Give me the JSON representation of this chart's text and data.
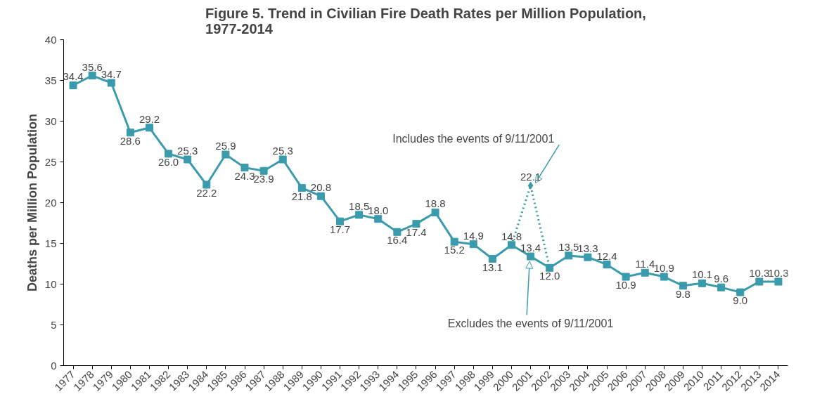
{
  "chart_data": {
    "type": "line",
    "title": "Figure 5. Trend in Civilian Fire Death Rates per Million Population,\n1977-2014",
    "ylabel": "Deaths per Million Population",
    "categories": [
      "1977",
      "1978",
      "1979",
      "1980",
      "1981",
      "1982",
      "1983",
      "1984",
      "1985",
      "1986",
      "1987",
      "1988",
      "1989",
      "1990",
      "1991",
      "1992",
      "1993",
      "1994",
      "1995",
      "1996",
      "1997",
      "1998",
      "1999",
      "2000",
      "2001",
      "2002",
      "2003",
      "2004",
      "2005",
      "2006",
      "2007",
      "2008",
      "2009",
      "2010",
      "2011",
      "2012",
      "2013",
      "2014"
    ],
    "series": [
      {
        "color": "#3a9bac",
        "marker": "square",
        "line_style": "solid",
        "values": [
          34.4,
          35.6,
          34.7,
          28.6,
          29.2,
          26.0,
          25.3,
          22.2,
          25.9,
          24.3,
          23.9,
          25.3,
          21.8,
          20.8,
          17.7,
          18.5,
          18.0,
          16.4,
          17.4,
          18.8,
          15.2,
          14.9,
          13.1,
          14.8,
          13.4,
          12.0,
          13.5,
          13.3,
          12.4,
          10.9,
          11.4,
          10.9,
          9.8,
          10.1,
          9.6,
          9.0,
          10.3,
          10.3
        ],
        "value_labels": [
          "34.4",
          "35.6",
          "34.7",
          "28.6",
          "29.2",
          "26.0",
          "25.3",
          "22.2",
          "25.9",
          "24.3",
          "23.9",
          "25.3",
          "21.8",
          "20.8",
          "17.7",
          "18.5",
          "18.0",
          "16.4",
          "17.4",
          "18.8",
          "15.2",
          "14.9",
          "13.1",
          "14.8",
          "13.4",
          "12.0",
          "13.5",
          "13.3",
          "12.4",
          "10.9",
          "11.4",
          "10.9",
          "9.8",
          "10.1",
          "9.6",
          "9.0",
          "10.3",
          "10.3"
        ]
      },
      {
        "color": "#3a9bac",
        "marker": "diamond",
        "line_style": "dotted",
        "values": [
          null,
          null,
          null,
          null,
          null,
          null,
          null,
          null,
          null,
          null,
          null,
          null,
          null,
          null,
          null,
          null,
          null,
          null,
          null,
          null,
          null,
          null,
          null,
          14.8,
          22.1,
          12.0,
          null,
          null,
          null,
          null,
          null,
          null,
          null,
          null,
          null,
          null,
          null,
          null
        ],
        "value_labels": [
          null,
          null,
          null,
          null,
          null,
          null,
          null,
          null,
          null,
          null,
          null,
          null,
          null,
          null,
          null,
          null,
          null,
          null,
          null,
          null,
          null,
          null,
          null,
          null,
          "22.1",
          null,
          null,
          null,
          null,
          null,
          null,
          null,
          null,
          null,
          null,
          null,
          null,
          null
        ]
      }
    ],
    "ylim": [
      0,
      40
    ],
    "yticks": [
      0,
      5,
      10,
      15,
      20,
      25,
      30,
      35,
      40
    ],
    "grid": false,
    "annotations": [
      {
        "text": "Includes the events of 9/11/2001",
        "x": "2001",
        "y": 22.1
      },
      {
        "text": "Excludes the events of 9/11/2001",
        "x": "2001",
        "y": 13.4
      }
    ]
  }
}
